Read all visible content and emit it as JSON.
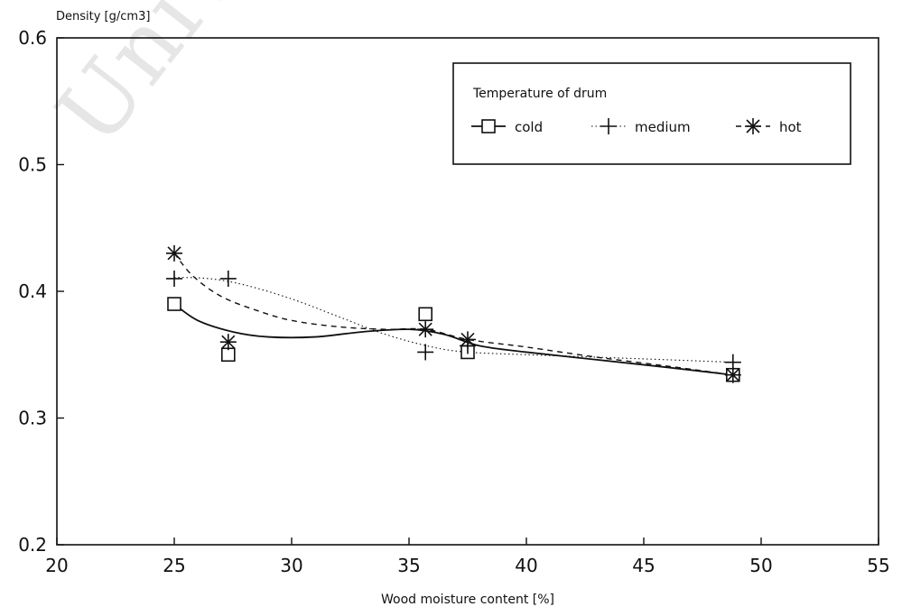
{
  "chart_data": {
    "type": "line",
    "title": "",
    "xlabel": "Wood moisture content  [%]",
    "ylabel": "Density  [g/cm3]",
    "xlim": [
      20,
      55
    ],
    "ylim": [
      0.2,
      0.6
    ],
    "x_ticks": [
      "20",
      "25",
      "30",
      "35",
      "40",
      "45",
      "50",
      "55"
    ],
    "y_ticks": [
      "0.2",
      "0.3",
      "0.4",
      "0.5",
      "0.6"
    ],
    "legend": {
      "title": "Temperature of drum",
      "placement": "top-right",
      "entries": [
        "cold",
        "medium",
        "hot"
      ]
    },
    "series": [
      {
        "name": "cold",
        "marker": "square",
        "line": "solid",
        "points": [
          [
            25,
            0.39
          ],
          [
            27.3,
            0.35
          ],
          [
            35.7,
            0.382
          ],
          [
            37.5,
            0.352
          ],
          [
            48.8,
            0.334
          ]
        ],
        "curve": [
          [
            25,
            0.39
          ],
          [
            26,
            0.377
          ],
          [
            27.5,
            0.368
          ],
          [
            29,
            0.364
          ],
          [
            31,
            0.364
          ],
          [
            33,
            0.368
          ],
          [
            35,
            0.37
          ],
          [
            36.5,
            0.366
          ],
          [
            38,
            0.357
          ],
          [
            40,
            0.352
          ],
          [
            43,
            0.346
          ],
          [
            46,
            0.34
          ],
          [
            48.8,
            0.334
          ]
        ]
      },
      {
        "name": "medium",
        "marker": "plus",
        "line": "dotted",
        "points": [
          [
            25,
            0.41
          ],
          [
            27.3,
            0.41
          ],
          [
            35.7,
            0.352
          ],
          [
            37.5,
            0.357
          ],
          [
            48.8,
            0.344
          ]
        ],
        "curve": [
          [
            25,
            0.411
          ],
          [
            26.5,
            0.41
          ],
          [
            28,
            0.405
          ],
          [
            30,
            0.394
          ],
          [
            32,
            0.38
          ],
          [
            34,
            0.366
          ],
          [
            36,
            0.356
          ],
          [
            37.5,
            0.352
          ],
          [
            40,
            0.35
          ],
          [
            43,
            0.348
          ],
          [
            46,
            0.346
          ],
          [
            48.8,
            0.344
          ]
        ]
      },
      {
        "name": "hot",
        "marker": "asterisk",
        "line": "dashed",
        "points": [
          [
            25,
            0.43
          ],
          [
            27.3,
            0.36
          ],
          [
            35.7,
            0.37
          ],
          [
            37.5,
            0.362
          ],
          [
            48.8,
            0.334
          ]
        ],
        "curve": [
          [
            25,
            0.43
          ],
          [
            25.8,
            0.412
          ],
          [
            27,
            0.396
          ],
          [
            28.5,
            0.385
          ],
          [
            30,
            0.377
          ],
          [
            32,
            0.372
          ],
          [
            34,
            0.37
          ],
          [
            35.7,
            0.37
          ],
          [
            37.5,
            0.362
          ],
          [
            40,
            0.356
          ],
          [
            43,
            0.348
          ],
          [
            46,
            0.341
          ],
          [
            48.8,
            0.334
          ]
        ]
      }
    ]
  }
}
